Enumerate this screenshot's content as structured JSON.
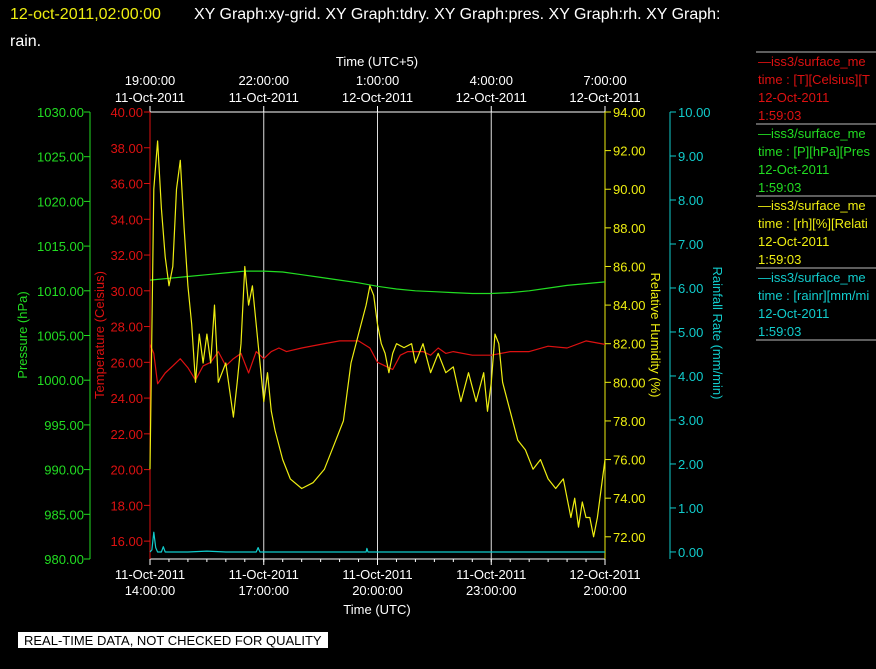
{
  "header": {
    "timestamp": "12-oct-2011,02:00:00",
    "graphs_line1": "XY Graph:xy-grid.  XY Graph:tdry.  XY Graph:pres.  XY Graph:rh.  XY Graph:",
    "graphs_line2": "rain."
  },
  "footer_notice": "REAL-TIME DATA, NOT CHECKED FOR QUALITY",
  "colors": {
    "pressure": "#22dd22",
    "temperature": "#dd1111",
    "humidity": "#eeee11",
    "rain": "#11cccc",
    "header_time": "#eeee11"
  },
  "legend": [
    {
      "line1": "—iss3/surface_me",
      "line2": "time : [T][Celsius][T",
      "date": "12-Oct-2011",
      "time": "1:59:03",
      "color": "#dd1111"
    },
    {
      "line1": "—iss3/surface_me",
      "line2": "time : [P][hPa][Pres",
      "date": "12-Oct-2011",
      "time": "1:59:03",
      "color": "#22dd22"
    },
    {
      "line1": "—iss3/surface_me",
      "line2": "time : [rh][%][Relati",
      "date": "12-Oct-2011",
      "time": "1:59:03",
      "color": "#eeee11"
    },
    {
      "line1": "—iss3/surface_me",
      "line2": "time : [rainr][mm/mi",
      "date": "12-Oct-2011",
      "time": "1:59:03",
      "color": "#11cccc"
    }
  ],
  "chart_data": {
    "type": "line",
    "x_axis_bottom": {
      "label": "Time (UTC)",
      "ticks": [
        {
          "date": "11-Oct-2011",
          "time": "14:00:00"
        },
        {
          "date": "11-Oct-2011",
          "time": "17:00:00"
        },
        {
          "date": "11-Oct-2011",
          "time": "20:00:00"
        },
        {
          "date": "11-Oct-2011",
          "time": "23:00:00"
        },
        {
          "date": "12-Oct-2011",
          "time": "2:00:00"
        }
      ]
    },
    "x_axis_top": {
      "label": "Time (UTC+5)",
      "ticks": [
        {
          "time": "19:00:00",
          "date": "11-Oct-2011"
        },
        {
          "time": "22:00:00",
          "date": "11-Oct-2011"
        },
        {
          "time": "1:00:00",
          "date": "12-Oct-2011"
        },
        {
          "time": "4:00:00",
          "date": "12-Oct-2011"
        },
        {
          "time": "7:00:00",
          "date": "12-Oct-2011"
        }
      ]
    },
    "xlim_hours_utc": [
      14,
      26
    ],
    "y_axes": {
      "pressure": {
        "label": "Pressure (hPa)",
        "ylim": [
          980,
          1030
        ],
        "ticks": [
          "980.00",
          "985.00",
          "990.00",
          "995.00",
          "1000.00",
          "1005.00",
          "1010.00",
          "1015.00",
          "1020.00",
          "1025.00",
          "1030.00"
        ]
      },
      "temperature": {
        "label": "Temperature (Celsius)",
        "ylim": [
          15,
          40
        ],
        "ticks": [
          "16.00",
          "18.00",
          "20.00",
          "22.00",
          "24.00",
          "26.00",
          "28.00",
          "30.00",
          "32.00",
          "34.00",
          "36.00",
          "38.00",
          "40.00"
        ]
      },
      "humidity": {
        "label": "Relative Humidity (%)",
        "ylim": [
          70.85,
          94
        ],
        "ticks": [
          "72.00",
          "74.00",
          "76.00",
          "78.00",
          "80.00",
          "82.00",
          "84.00",
          "86.00",
          "88.00",
          "90.00",
          "92.00",
          "94.00"
        ]
      },
      "rain": {
        "label": "Rainfall Rate (mm/min)",
        "ylim": [
          -0.16,
          10
        ],
        "ticks": [
          "0.00",
          "1.00",
          "2.00",
          "3.00",
          "4.00",
          "5.00",
          "6.00",
          "7.00",
          "8.00",
          "9.00",
          "10.00"
        ]
      }
    },
    "series": [
      {
        "key": "pressure",
        "x": [
          14.0,
          14.5,
          15,
          15.5,
          16,
          16.5,
          17,
          17.5,
          18,
          18.5,
          19,
          19.5,
          20,
          20.5,
          21,
          21.5,
          22,
          22.5,
          23,
          23.5,
          24,
          24.5,
          25,
          25.5,
          26
        ],
        "values": [
          1011.2,
          1011.4,
          1011.6,
          1011.8,
          1012.0,
          1012.2,
          1012.2,
          1012.1,
          1011.8,
          1011.5,
          1011.2,
          1010.9,
          1010.5,
          1010.2,
          1010.0,
          1009.9,
          1009.8,
          1009.7,
          1009.7,
          1009.8,
          1010.0,
          1010.3,
          1010.6,
          1010.8,
          1011.0
        ]
      },
      {
        "key": "temperature",
        "x": [
          14.0,
          14.1,
          14.2,
          14.4,
          14.6,
          14.8,
          15.0,
          15.2,
          15.4,
          15.6,
          15.8,
          16.0,
          16.2,
          16.4,
          16.6,
          16.8,
          17.0,
          17.2,
          17.4,
          17.6,
          18.0,
          18.5,
          19.0,
          19.5,
          19.8,
          20.0,
          20.2,
          20.4,
          20.6,
          20.8,
          21.0,
          21.2,
          21.4,
          21.6,
          21.8,
          22.0,
          22.5,
          23.0,
          23.5,
          24.0,
          24.5,
          25.0,
          25.5,
          26.0
        ],
        "values": [
          27.0,
          26.5,
          24.8,
          25.4,
          25.8,
          26.2,
          25.7,
          25.0,
          25.8,
          26.0,
          26.6,
          25.8,
          26.2,
          26.5,
          25.4,
          26.6,
          26.2,
          26.6,
          26.8,
          26.6,
          26.8,
          27.0,
          27.2,
          27.2,
          26.8,
          26.0,
          25.8,
          25.6,
          26.4,
          26.6,
          26.6,
          26.6,
          26.4,
          26.8,
          26.5,
          26.6,
          26.4,
          26.4,
          26.6,
          26.6,
          26.9,
          26.8,
          27.2,
          27.0
        ]
      },
      {
        "key": "humidity",
        "x": [
          14.0,
          14.1,
          14.2,
          14.3,
          14.4,
          14.5,
          14.6,
          14.7,
          14.8,
          14.9,
          15.0,
          15.1,
          15.2,
          15.3,
          15.4,
          15.5,
          15.6,
          15.7,
          15.8,
          16.0,
          16.2,
          16.3,
          16.4,
          16.5,
          16.6,
          16.7,
          16.8,
          17.0,
          17.1,
          17.2,
          17.3,
          17.5,
          17.7,
          18.0,
          18.3,
          18.6,
          18.9,
          19.1,
          19.3,
          19.5,
          19.7,
          19.8,
          19.9,
          20.0,
          20.1,
          20.2,
          20.3,
          20.4,
          20.5,
          20.7,
          20.9,
          21.0,
          21.2,
          21.4,
          21.6,
          21.8,
          22.0,
          22.2,
          22.4,
          22.6,
          22.8,
          22.9,
          23.0,
          23.1,
          23.2,
          23.3,
          23.5,
          23.7,
          23.9,
          24.1,
          24.3,
          24.5,
          24.7,
          24.9,
          25.0,
          25.1,
          25.2,
          25.3,
          25.4,
          25.5,
          25.6,
          25.7,
          25.8,
          25.9,
          26.0
        ],
        "values": [
          75.5,
          90.0,
          92.5,
          89.0,
          86.5,
          85.0,
          86.0,
          90.0,
          91.5,
          88.0,
          85.0,
          83.0,
          80.0,
          82.5,
          81.0,
          82.5,
          81.0,
          84.0,
          80.0,
          81.0,
          78.2,
          80.0,
          82.0,
          86.0,
          84.0,
          85.0,
          83.0,
          79.0,
          80.5,
          78.5,
          77.5,
          76.0,
          75.0,
          74.5,
          74.8,
          75.5,
          77.0,
          78.0,
          81.0,
          82.5,
          84.0,
          85.0,
          84.5,
          83.0,
          82.0,
          81.5,
          80.5,
          81.5,
          82.0,
          81.8,
          82.0,
          81.0,
          82.0,
          80.5,
          81.5,
          80.5,
          80.8,
          79.0,
          80.5,
          79.0,
          80.5,
          78.5,
          80.0,
          82.5,
          82.0,
          80.0,
          78.5,
          77.0,
          76.5,
          75.5,
          76.0,
          75.0,
          74.5,
          75.0,
          74.0,
          73.0,
          74.0,
          72.5,
          73.8,
          73.0,
          73.0,
          72.0,
          73.0,
          74.5,
          76.0
        ]
      },
      {
        "key": "rain",
        "x": [
          14.0,
          14.05,
          14.1,
          14.15,
          14.2,
          14.3,
          14.35,
          14.4,
          14.5,
          15.0,
          15.5,
          16.0,
          16.5,
          16.8,
          16.85,
          16.9,
          17.0,
          18.0,
          19.0,
          19.7,
          19.72,
          19.75,
          20.0,
          21.0,
          22.0,
          23.0,
          24.0,
          25.0,
          26.0
        ],
        "values": [
          0.0,
          0.05,
          0.45,
          0.1,
          0.0,
          0.0,
          0.12,
          0.0,
          0.0,
          0.0,
          0.02,
          0.0,
          0.0,
          0.0,
          0.1,
          0.0,
          0.0,
          0.0,
          0.0,
          0.0,
          0.08,
          0.0,
          0.0,
          0.0,
          0.0,
          0.0,
          0.0,
          0.0,
          0.0
        ]
      }
    ]
  }
}
